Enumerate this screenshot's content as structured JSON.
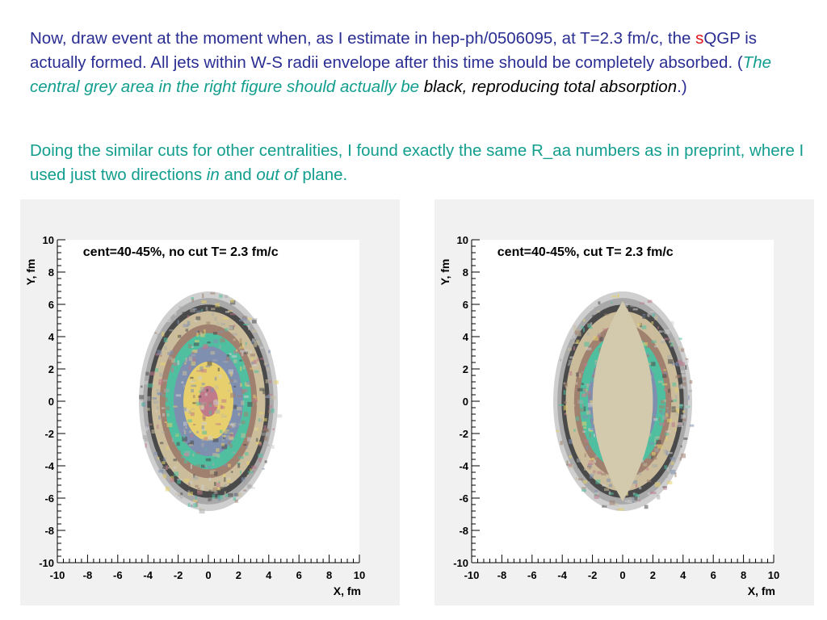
{
  "text": {
    "p1_a": "Now, draw event at the moment when, as I estimate in hep-ph/0506095, at T=2.3 fm/c, the ",
    "p1_s": "s",
    "p1_b": "QGP is actually formed.  All jets within W-S radii envelope after this time should be completely absorbed. (",
    "p1_c": "The central grey area in the right figure should actually be",
    "p1_d": " black, reproducing total absorption",
    "p1_e": ".)",
    "p2_a": "Doing the similar cuts for other centralities, I found exactly the same R_aa numbers as in preprint, where I used just two directions ",
    "p2_in": "in",
    "p2_and": " and ",
    "p2_out": "out of",
    "p2_end": " plane."
  },
  "chart_data": [
    {
      "type": "heatmap",
      "title": "cent=40-45%, no cut T= 2.3 fm/c",
      "xlabel": "X, fm",
      "ylabel": "Y, fm",
      "xlim": [
        -10,
        10
      ],
      "ylim": [
        -10,
        10
      ],
      "xticks": [
        "-10",
        "-8",
        "-6",
        "-4",
        "-2",
        "0",
        "2",
        "4",
        "6",
        "8",
        "10"
      ],
      "yticks": [
        "-10",
        "-8",
        "-6",
        "-4",
        "-2",
        "0",
        "2",
        "4",
        "6",
        "8",
        "10"
      ],
      "region": {
        "center": [
          0,
          0
        ],
        "semi_axis_x": 4.6,
        "semi_axis_y": 6.8
      },
      "cut": null
    },
    {
      "type": "heatmap",
      "title": "cent=40-45%, cut T= 2.3 fm/c",
      "xlabel": "X, fm",
      "ylabel": "Y, fm",
      "xlim": [
        -10,
        10
      ],
      "ylim": [
        -10,
        10
      ],
      "xticks": [
        "-10",
        "-8",
        "-6",
        "-4",
        "-2",
        "0",
        "2",
        "4",
        "6",
        "8",
        "10"
      ],
      "yticks": [
        "-10",
        "-8",
        "-6",
        "-4",
        "-2",
        "0",
        "2",
        "4",
        "6",
        "8",
        "10"
      ],
      "region": {
        "center": [
          0,
          0
        ],
        "semi_axis_x": 4.6,
        "semi_axis_y": 6.8
      },
      "cut": {
        "half_width": 2.0,
        "half_height": 6.2
      }
    }
  ],
  "colors": {
    "levels": [
      "#cfcfcf",
      "#a9a9a9",
      "#4a4a4a",
      "#cbbd9c",
      "#a0806f",
      "#4fbfa0",
      "#7f8fb0",
      "#e6cf6c",
      "#c07a8a"
    ],
    "cut_fill": "#d3c9ad",
    "panel_bg": "#f1f1f1"
  }
}
